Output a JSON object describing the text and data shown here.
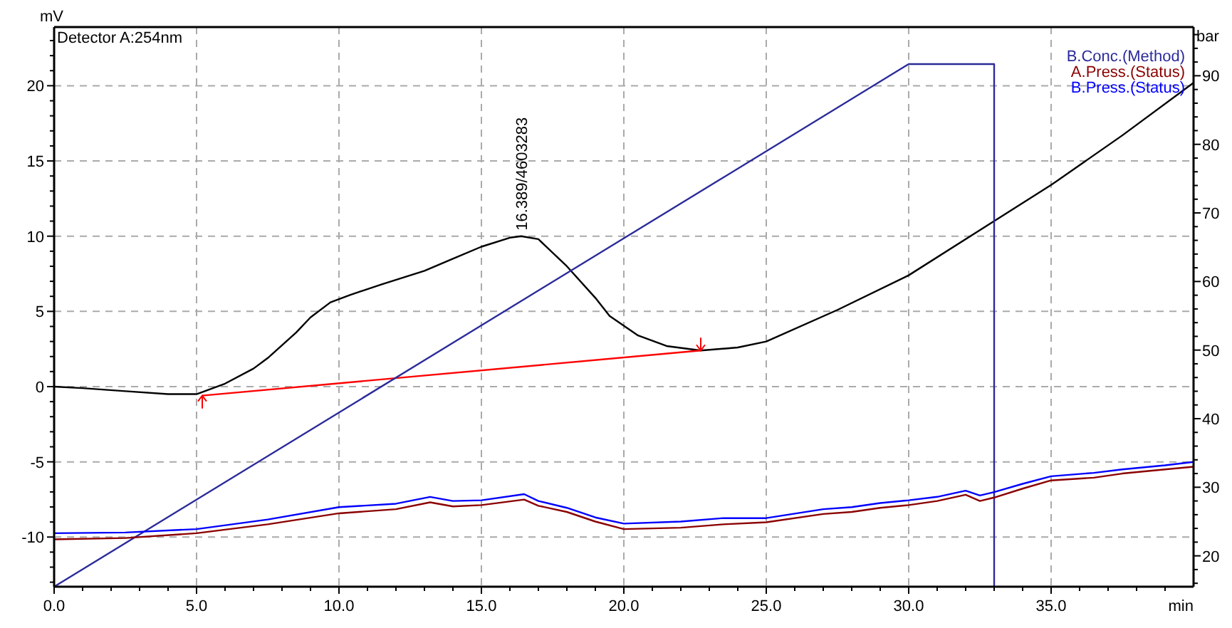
{
  "chart_data": {
    "type": "line",
    "xlabel": "min",
    "ylabel": "mV",
    "y2label": "bar",
    "xlim": [
      0,
      40
    ],
    "ylim": [
      -13.3,
      23.9
    ],
    "y2lim": [
      15.5,
      97.1
    ],
    "xticks": [
      {
        "value": 0,
        "label": "0.0"
      },
      {
        "value": 5,
        "label": "5.0"
      },
      {
        "value": 10,
        "label": "10.0"
      },
      {
        "value": 15,
        "label": "15.0"
      },
      {
        "value": 20,
        "label": "20.0"
      },
      {
        "value": 25,
        "label": "25.0"
      },
      {
        "value": 30,
        "label": "30.0"
      },
      {
        "value": 35,
        "label": "35.0"
      },
      {
        "value": 1,
        "label": null
      },
      {
        "value": 2,
        "label": null
      },
      {
        "value": 3,
        "label": null
      },
      {
        "value": 4,
        "label": null
      },
      {
        "value": 6,
        "label": null
      },
      {
        "value": 7,
        "label": null
      },
      {
        "value": 8,
        "label": null
      },
      {
        "value": 9,
        "label": null
      },
      {
        "value": 11,
        "label": null
      },
      {
        "value": 12,
        "label": null
      },
      {
        "value": 13,
        "label": null
      },
      {
        "value": 14,
        "label": null
      },
      {
        "value": 16,
        "label": null
      },
      {
        "value": 17,
        "label": null
      },
      {
        "value": 18,
        "label": null
      },
      {
        "value": 19,
        "label": null
      },
      {
        "value": 21,
        "label": null
      },
      {
        "value": 22,
        "label": null
      },
      {
        "value": 23,
        "label": null
      },
      {
        "value": 24,
        "label": null
      },
      {
        "value": 26,
        "label": null
      },
      {
        "value": 27,
        "label": null
      },
      {
        "value": 28,
        "label": null
      },
      {
        "value": 29,
        "label": null
      },
      {
        "value": 31,
        "label": null
      },
      {
        "value": 32,
        "label": null
      },
      {
        "value": 33,
        "label": null
      },
      {
        "value": 34,
        "label": null
      },
      {
        "value": 36,
        "label": null
      },
      {
        "value": 37,
        "label": null
      },
      {
        "value": 38,
        "label": null
      },
      {
        "value": 39,
        "label": null
      }
    ],
    "yticks": [
      -10,
      -5,
      0,
      5,
      10,
      15,
      20,
      {
        "value": -13,
        "label": null
      },
      {
        "value": -12,
        "label": null
      },
      {
        "value": -11,
        "label": null
      },
      {
        "value": -9,
        "label": null
      },
      {
        "value": -8,
        "label": null
      },
      {
        "value": -7,
        "label": null
      },
      {
        "value": -6,
        "label": null
      },
      {
        "value": -4,
        "label": null
      },
      {
        "value": -3,
        "label": null
      },
      {
        "value": -2,
        "label": null
      },
      {
        "value": -1,
        "label": null
      },
      {
        "value": 1,
        "label": null
      },
      {
        "value": 2,
        "label": null
      },
      {
        "value": 3,
        "label": null
      },
      {
        "value": 4,
        "label": null
      },
      {
        "value": 6,
        "label": null
      },
      {
        "value": 7,
        "label": null
      },
      {
        "value": 8,
        "label": null
      },
      {
        "value": 9,
        "label": null
      },
      {
        "value": 11,
        "label": null
      },
      {
        "value": 12,
        "label": null
      },
      {
        "value": 13,
        "label": null
      },
      {
        "value": 14,
        "label": null
      },
      {
        "value": 16,
        "label": null
      },
      {
        "value": 17,
        "label": null
      },
      {
        "value": 18,
        "label": null
      },
      {
        "value": 19,
        "label": null
      },
      {
        "value": 21,
        "label": null
      },
      {
        "value": 22,
        "label": null
      },
      {
        "value": 23,
        "label": null
      }
    ],
    "y2ticks": [
      20,
      30,
      40,
      50,
      60,
      70,
      80,
      90,
      {
        "value": 16,
        "label": null
      },
      {
        "value": 18,
        "label": null
      },
      {
        "value": 22,
        "label": null
      },
      {
        "value": 24,
        "label": null
      },
      {
        "value": 26,
        "label": null
      },
      {
        "value": 28,
        "label": null
      },
      {
        "value": 32,
        "label": null
      },
      {
        "value": 34,
        "label": null
      },
      {
        "value": 36,
        "label": null
      },
      {
        "value": 38,
        "label": null
      },
      {
        "value": 42,
        "label": null
      },
      {
        "value": 44,
        "label": null
      },
      {
        "value": 46,
        "label": null
      },
      {
        "value": 48,
        "label": null
      },
      {
        "value": 52,
        "label": null
      },
      {
        "value": 54,
        "label": null
      },
      {
        "value": 56,
        "label": null
      },
      {
        "value": 58,
        "label": null
      },
      {
        "value": 62,
        "label": null
      },
      {
        "value": 64,
        "label": null
      },
      {
        "value": 66,
        "label": null
      },
      {
        "value": 68,
        "label": null
      },
      {
        "value": 72,
        "label": null
      },
      {
        "value": 74,
        "label": null
      },
      {
        "value": 76,
        "label": null
      },
      {
        "value": 78,
        "label": null
      },
      {
        "value": 82,
        "label": null
      },
      {
        "value": 84,
        "label": null
      },
      {
        "value": 86,
        "label": null
      },
      {
        "value": 88,
        "label": null
      },
      {
        "value": 92,
        "label": null
      },
      {
        "value": 94,
        "label": null
      },
      {
        "value": 96,
        "label": null
      }
    ],
    "grid": true,
    "line_style": "solid",
    "legend": "top right",
    "annotations": [
      {
        "text": "16.389/4603283",
        "x": 16.389,
        "y": 10
      }
    ],
    "series": [
      {
        "name": "Detector A:254nm",
        "color": "#000000",
        "x": [
          0,
          1,
          2.5,
          4,
          5,
          6,
          7,
          7.5,
          8.5,
          9,
          9.7,
          10.4,
          11.5,
          13,
          14,
          15,
          16,
          16.4,
          17,
          18,
          19,
          19.5,
          20.5,
          21.5,
          22.7,
          24,
          25,
          27.5,
          30,
          33,
          35,
          37.5,
          40
        ],
        "values": [
          0,
          -0.1,
          -0.3,
          -0.5,
          -0.5,
          0.2,
          1.2,
          1.9,
          3.6,
          4.6,
          5.6,
          6.1,
          6.8,
          7.7,
          8.5,
          9.3,
          9.9,
          10,
          9.8,
          8.0,
          5.9,
          4.7,
          3.4,
          2.7,
          2.4,
          2.6,
          3.0,
          5.1,
          7.4,
          11.0,
          13.4,
          16.7,
          20.2
        ]
      },
      {
        "color": "#ff0000",
        "x": [
          5.2,
          22.7
        ],
        "values": [
          -0.6,
          2.4
        ]
      },
      {
        "name": "B.Conc.(Method)",
        "color": "#2b2b9a",
        "axis": "y2",
        "x": [
          0,
          30,
          33,
          33
        ],
        "values": [
          15.5,
          91.7,
          91.7,
          15.5
        ]
      },
      {
        "name": "A.Press.(Status)",
        "color": "#8b0000",
        "axis": "y2",
        "x": [
          0,
          2.5,
          5,
          7.5,
          10,
          12,
          13.2,
          14,
          15,
          16.5,
          17,
          18,
          19,
          20,
          22,
          23.5,
          25,
          27,
          28,
          29,
          30,
          31,
          32,
          32.5,
          33,
          34,
          35,
          36.5,
          37.5,
          39,
          40
        ],
        "values": [
          22.4,
          22.6,
          23.3,
          24.6,
          26.2,
          26.8,
          27.8,
          27.2,
          27.4,
          28.2,
          27.3,
          26.4,
          25.0,
          23.9,
          24.1,
          24.6,
          24.9,
          26.1,
          26.4,
          27.0,
          27.4,
          28.0,
          28.9,
          28.0,
          28.5,
          29.8,
          31.0,
          31.4,
          32.0,
          32.6,
          33.0
        ]
      },
      {
        "name": "B.Press.(Status)",
        "color": "#0000ff",
        "axis": "y2",
        "x": [
          0,
          2.5,
          5,
          7.5,
          10,
          12,
          13.2,
          14,
          15,
          16.5,
          17,
          18,
          19,
          20,
          22,
          23.5,
          25,
          27,
          28,
          29,
          30,
          31,
          32,
          32.5,
          33,
          34,
          35,
          36.5,
          37.5,
          39,
          40
        ],
        "values": [
          23.3,
          23.4,
          23.9,
          25.3,
          27.1,
          27.6,
          28.6,
          28.0,
          28.1,
          29.0,
          28.0,
          27.0,
          25.6,
          24.7,
          25.0,
          25.5,
          25.5,
          26.8,
          27.1,
          27.7,
          28.1,
          28.6,
          29.5,
          28.8,
          29.3,
          30.5,
          31.6,
          32.1,
          32.6,
          33.2,
          33.7
        ]
      }
    ]
  }
}
